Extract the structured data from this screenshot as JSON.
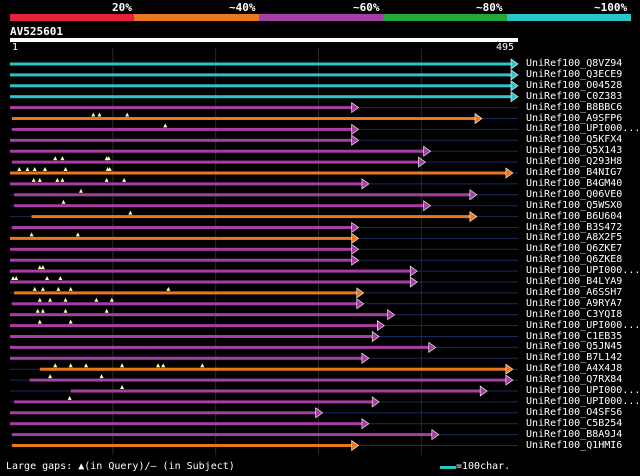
{
  "legend": {
    "labels": [
      "20%",
      "~40%",
      "~60%",
      "~80%",
      "~100%"
    ],
    "colors": [
      "#e8203a",
      "#e87820",
      "#a63fa3",
      "#23a63a",
      "#2bc4c9"
    ]
  },
  "query": {
    "id": "AV525601",
    "start": "1",
    "end": "495",
    "length": 495
  },
  "hits": [
    {
      "name": "UniRef100_Q8VZ94",
      "start": 1,
      "end": 495,
      "identity": 5,
      "gaps": []
    },
    {
      "name": "UniRef100_Q3ECE9",
      "start": 1,
      "end": 495,
      "identity": 5,
      "gaps": []
    },
    {
      "name": "UniRef100_O04528",
      "start": 1,
      "end": 495,
      "identity": 5,
      "gaps": []
    },
    {
      "name": "UniRef100_C0Z383",
      "start": 1,
      "end": 495,
      "identity": 5,
      "gaps": []
    },
    {
      "name": "UniRef100_B8BBC6",
      "start": 1,
      "end": 340,
      "identity": 3,
      "gaps": []
    },
    {
      "name": "UniRef100_A9SFP6",
      "start": 3,
      "end": 460,
      "identity": 2,
      "gaps": [
        82,
        88,
        115
      ]
    },
    {
      "name": "UniRef100_UPI000...",
      "start": 3,
      "end": 340,
      "identity": 3,
      "gaps": [
        152
      ]
    },
    {
      "name": "UniRef100_Q5KFX4",
      "start": 1,
      "end": 340,
      "identity": 3,
      "gaps": []
    },
    {
      "name": "UniRef100_Q5X143",
      "start": 1,
      "end": 410,
      "identity": 3,
      "gaps": []
    },
    {
      "name": "UniRef100_Q293H8",
      "start": 3,
      "end": 405,
      "identity": 3,
      "gaps": [
        45,
        52,
        95,
        97
      ]
    },
    {
      "name": "UniRef100_B4NIG7",
      "start": 1,
      "end": 490,
      "identity": 2,
      "gaps": [
        10,
        18,
        25,
        35,
        55,
        96,
        98
      ]
    },
    {
      "name": "UniRef100_B4GM40",
      "start": 1,
      "end": 350,
      "identity": 3,
      "gaps": [
        24,
        30,
        47,
        52,
        95,
        112
      ]
    },
    {
      "name": "UniRef100_Q06VE0",
      "start": 5,
      "end": 455,
      "identity": 3,
      "gaps": [
        70
      ]
    },
    {
      "name": "UniRef100_Q5WSX0",
      "start": 5,
      "end": 410,
      "identity": 3,
      "gaps": [
        53
      ]
    },
    {
      "name": "UniRef100_B6U604",
      "start": 22,
      "end": 455,
      "identity": 2,
      "gaps": [
        118
      ]
    },
    {
      "name": "UniRef100_B3S472",
      "start": 3,
      "end": 340,
      "identity": 3,
      "gaps": []
    },
    {
      "name": "UniRef100_A8X2F5",
      "start": 1,
      "end": 340,
      "identity": 2,
      "gaps": [
        22,
        67
      ]
    },
    {
      "name": "UniRef100_Q6ZKE7",
      "start": 1,
      "end": 340,
      "identity": 3,
      "gaps": []
    },
    {
      "name": "UniRef100_Q6ZKE8",
      "start": 1,
      "end": 340,
      "identity": 3,
      "gaps": []
    },
    {
      "name": "UniRef100_UPI000...",
      "start": 1,
      "end": 397,
      "identity": 3,
      "gaps": [
        30,
        33
      ]
    },
    {
      "name": "UniRef100_B4LYA9",
      "start": 1,
      "end": 397,
      "identity": 3,
      "gaps": [
        4,
        7,
        37,
        50
      ]
    },
    {
      "name": "UniRef100_A6SSH7",
      "start": 5,
      "end": 345,
      "identity": 2,
      "gaps": [
        25,
        33,
        48,
        60,
        155
      ]
    },
    {
      "name": "UniRef100_A9RYA7",
      "start": 3,
      "end": 345,
      "identity": 3,
      "gaps": [
        30,
        40,
        55,
        85,
        100
      ]
    },
    {
      "name": "UniRef100_C3YQI8",
      "start": 1,
      "end": 375,
      "identity": 3,
      "gaps": [
        28,
        33,
        55,
        95
      ]
    },
    {
      "name": "UniRef100_UPI000...",
      "start": 1,
      "end": 365,
      "identity": 3,
      "gaps": [
        30,
        60
      ]
    },
    {
      "name": "UniRef100_C1EB35",
      "start": 1,
      "end": 360,
      "identity": 3,
      "gaps": []
    },
    {
      "name": "UniRef100_Q5JN45",
      "start": 1,
      "end": 415,
      "identity": 3,
      "gaps": []
    },
    {
      "name": "UniRef100_B7L142",
      "start": 1,
      "end": 350,
      "identity": 3,
      "gaps": []
    },
    {
      "name": "UniRef100_A4X4J8",
      "start": 30,
      "end": 490,
      "identity": 2,
      "gaps": [
        45,
        60,
        75,
        110,
        145,
        150,
        188
      ]
    },
    {
      "name": "UniRef100_Q7RX84",
      "start": 20,
      "end": 490,
      "identity": 3,
      "gaps": [
        40,
        90
      ]
    },
    {
      "name": "UniRef100_UPI000...",
      "start": 60,
      "end": 465,
      "identity": 3,
      "gaps": [
        110
      ]
    },
    {
      "name": "UniRef100_UPI000...",
      "start": 5,
      "end": 360,
      "identity": 3,
      "gaps": [
        59
      ]
    },
    {
      "name": "UniRef100_O4SFS6",
      "start": 1,
      "end": 305,
      "identity": 3,
      "gaps": []
    },
    {
      "name": "UniRef100_C5B254",
      "start": 1,
      "end": 350,
      "identity": 3,
      "gaps": []
    },
    {
      "name": "UniRef100_B8A9J4",
      "start": 3,
      "end": 418,
      "identity": 3,
      "gaps": []
    },
    {
      "name": "UniRef100_Q1HMI6",
      "start": 3,
      "end": 340,
      "identity": 2,
      "gaps": []
    }
  ],
  "footer": {
    "legend_text": "Large gaps: ▲(in Query)/– (in Subject)",
    "scale_text": "=100char."
  }
}
